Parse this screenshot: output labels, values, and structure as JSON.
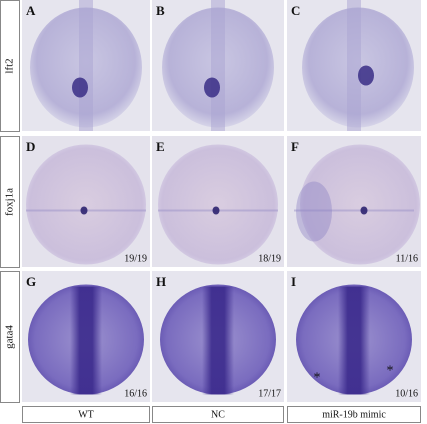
{
  "row_labels": [
    "lft2",
    "foxj1a",
    "gata4"
  ],
  "column_labels": [
    "WT",
    "NC",
    "miR-19b mimic"
  ],
  "panels": [
    {
      "letter": "A"
    },
    {
      "letter": "B"
    },
    {
      "letter": "C"
    },
    {
      "letter": "D",
      "fraction": "19/19"
    },
    {
      "letter": "E",
      "fraction": "18/19"
    },
    {
      "letter": "F",
      "fraction": "11/16"
    },
    {
      "letter": "G",
      "fraction": "16/16"
    },
    {
      "letter": "H",
      "fraction": "17/17"
    },
    {
      "letter": "I",
      "fraction": "10/16"
    }
  ]
}
